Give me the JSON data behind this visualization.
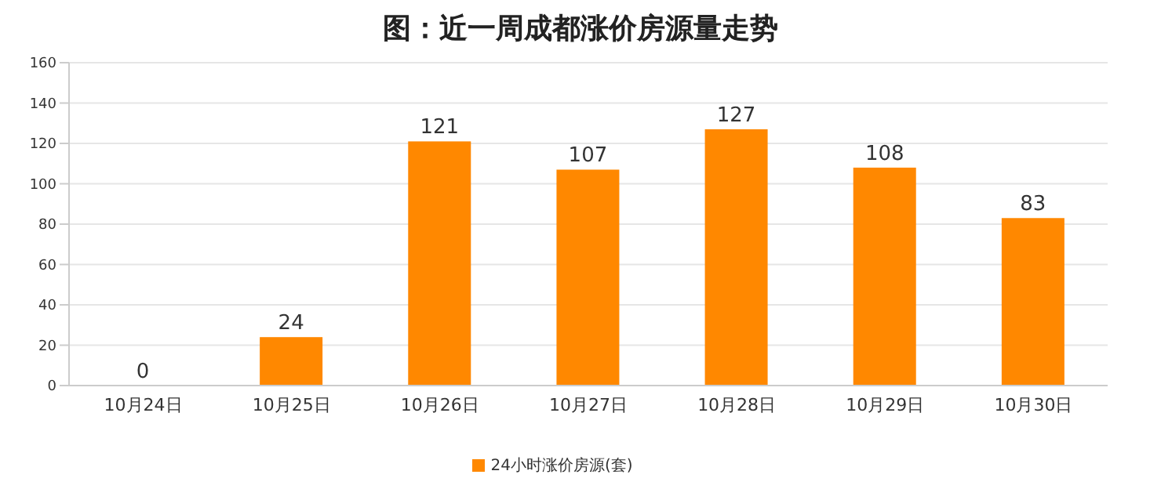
{
  "chart_data": {
    "type": "bar",
    "title": "图：近一周成都涨价房源量走势",
    "categories": [
      "10月24日",
      "10月25日",
      "10月26日",
      "10月27日",
      "10月28日",
      "10月29日",
      "10月30日"
    ],
    "series": [
      {
        "name": "24小时涨价房源(套)",
        "color": "#ff8800",
        "values": [
          0,
          24,
          121,
          107,
          127,
          108,
          83
        ]
      }
    ],
    "ylim": [
      0,
      160
    ],
    "yticks": [
      0,
      20,
      40,
      60,
      80,
      100,
      120,
      140,
      160
    ],
    "grid": "y",
    "legend": "bottom",
    "data_labels": true
  }
}
